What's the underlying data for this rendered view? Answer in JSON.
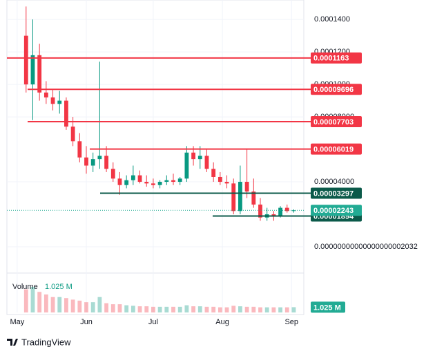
{
  "chart_data": {
    "type": "candlestick",
    "x": [
      4,
      7,
      10,
      13,
      16,
      19,
      22,
      25,
      28,
      31,
      34,
      37,
      40,
      43,
      46,
      49,
      52,
      55,
      58,
      61,
      64,
      67,
      70,
      73,
      76,
      79,
      82,
      85,
      88,
      91,
      94,
      97,
      100,
      103,
      106,
      109,
      112,
      115,
      118,
      121,
      124
    ],
    "open": [
      0.00013,
      0.0001,
      0.000118,
      9.5e-05,
      9.2e-05,
      8.8e-05,
      9e-05,
      7.4e-05,
      6.5e-05,
      5.5e-05,
      5e-05,
      5.4e-05,
      5.6e-05,
      4.8e-05,
      4.2e-05,
      3.8e-05,
      4.1e-05,
      4.4e-05,
      4e-05,
      3.9e-05,
      3.8e-05,
      4e-05,
      4.1e-05,
      4e-05,
      4.2e-05,
      5.8e-05,
      5.4e-05,
      5.6e-05,
      4.8e-05,
      4.3e-05,
      4e-05,
      3.9e-05,
      2.2e-05,
      4e-05,
      3.4e-05,
      2.6e-05,
      1.8e-05,
      2e-05,
      1.9e-05,
      2.4e-05,
      2.2e-05
    ],
    "high": [
      0.000148,
      0.00014,
      0.000125,
      0.000102,
      9.7e-05,
      9.6e-05,
      9.2e-05,
      8e-05,
      7e-05,
      6.2e-05,
      5.8e-05,
      0.000114,
      6.2e-05,
      5.2e-05,
      4.6e-05,
      4.4e-05,
      5e-05,
      4.7e-05,
      4.4e-05,
      4.2e-05,
      4.1e-05,
      4.4e-05,
      4.5e-05,
      4.3e-05,
      6.2e-05,
      6.2e-05,
      6.2e-05,
      6e-05,
      5.2e-05,
      4.6e-05,
      4.4e-05,
      4.2e-05,
      5e-05,
      6e-05,
      4.2e-05,
      3e-05,
      2.4e-05,
      2.2e-05,
      2.5e-05,
      2.6e-05,
      2.3e-05
    ],
    "low": [
      9.5e-05,
      7.8e-05,
      9e-05,
      8.8e-05,
      8.4e-05,
      8.2e-05,
      7.2e-05,
      6.2e-05,
      5.2e-05,
      4.5e-05,
      4.6e-05,
      4.8e-05,
      4.6e-05,
      4e-05,
      3.2e-05,
      3.6e-05,
      3.8e-05,
      3.9e-05,
      3.7e-05,
      3.6e-05,
      3.6e-05,
      3.8e-05,
      3.8e-05,
      3.8e-05,
      4e-05,
      5e-05,
      4.8e-05,
      4.6e-05,
      4e-05,
      3.8e-05,
      3.6e-05,
      2e-05,
      2e-05,
      3e-05,
      2.4e-05,
      1.6e-05,
      1.6e-05,
      1.6e-05,
      1.8e-05,
      2.1e-05,
      2.1e-05
    ],
    "close": [
      0.0001,
      0.000118,
      9.5e-05,
      9.2e-05,
      8.8e-05,
      9e-05,
      7.4e-05,
      6.5e-05,
      5.5e-05,
      5e-05,
      5.4e-05,
      5.6e-05,
      4.8e-05,
      4.2e-05,
      3.8e-05,
      4.1e-05,
      4.4e-05,
      4e-05,
      3.9e-05,
      3.8e-05,
      4e-05,
      4.1e-05,
      4e-05,
      4.2e-05,
      5.8e-05,
      5.4e-05,
      5.6e-05,
      4.8e-05,
      4.3e-05,
      4e-05,
      3.9e-05,
      2.2e-05,
      4e-05,
      3.4e-05,
      2.6e-05,
      1.8e-05,
      2e-05,
      1.9e-05,
      2.4e-05,
      2.2e-05,
      2.243e-05
    ],
    "up_color": "#089981",
    "down_color": "#f23645",
    "xlim": [
      -4.6,
      128.5
    ],
    "xticks": [
      {
        "value": 0,
        "label": "May"
      },
      {
        "value": 31,
        "label": "Jun"
      },
      {
        "value": 61,
        "label": "Jul"
      },
      {
        "value": 92,
        "label": "Aug"
      },
      {
        "value": 123,
        "label": "Sep"
      }
    ],
    "ylim": [
      -1.62e-05,
      0.000152
    ],
    "yticks": [
      {
        "value": 0.00014,
        "label": "0.0001400"
      },
      {
        "value": 0.00012,
        "label": "0.0001200"
      },
      {
        "value": 0.0001,
        "label": "0.0001000"
      },
      {
        "value": 8e-05,
        "label": "0.00008000"
      },
      {
        "value": 4e-05,
        "label": "0.00004000"
      },
      {
        "value": 2.032e-20,
        "label": "0.00000000000000000002032"
      }
    ],
    "grid": true,
    "levels": [
      {
        "value": 0.0001163,
        "color": "#f23645"
      },
      {
        "value": 9.696e-05,
        "color": "#f23645"
      },
      {
        "value": 7.703e-05,
        "color": "#f23645"
      },
      {
        "value": 6.019e-05,
        "color": "#f23645"
      },
      {
        "value": 3.297e-05,
        "color": "#0b5a4a"
      },
      {
        "value": 1.894e-05,
        "color": "#0b5a4a"
      }
    ],
    "last_price": 2.243e-05,
    "last_color": "#22ab94",
    "volume": {
      "label": "Volume",
      "last_label": "1.025 M",
      "last": 1025000,
      "ylim": [
        0,
        7000000
      ],
      "values": [
        4500000,
        5000000,
        4000000,
        3500000,
        3000000,
        3000000,
        2800000,
        2500000,
        2300000,
        2000000,
        2000000,
        3000000,
        1800000,
        1600000,
        1600000,
        1400000,
        1300000,
        1200000,
        1200000,
        1100000,
        1100000,
        1100000,
        1100000,
        1100000,
        1400000,
        1200000,
        1200000,
        1100000,
        1100000,
        1000000,
        1000000,
        1300000,
        1200000,
        1100000,
        1100000,
        1000000,
        1000000,
        1000000,
        1000000,
        1000000,
        1025000
      ]
    },
    "branding": "TradingView"
  }
}
